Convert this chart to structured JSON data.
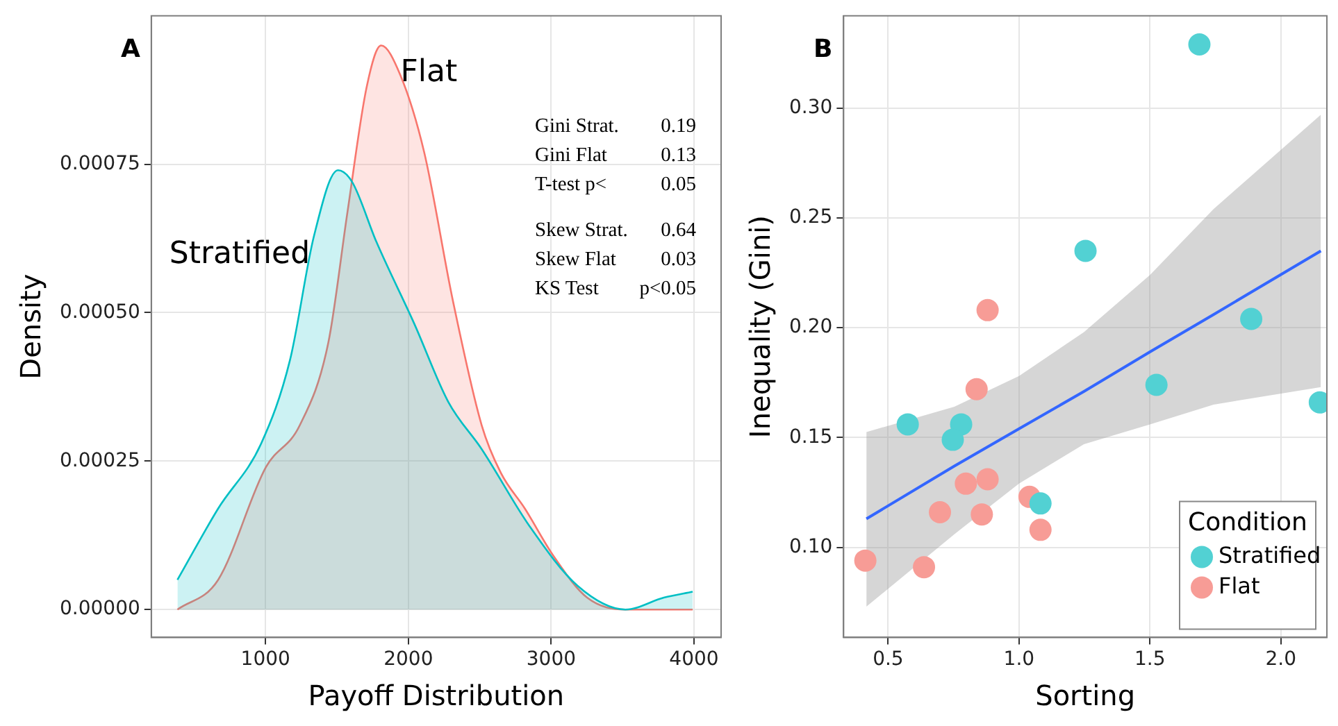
{
  "chart_data": [
    {
      "type": "area",
      "title": "A",
      "xlabel": "Payoff Distribution",
      "ylabel": "Density",
      "series": [
        {
          "name": "Stratified",
          "color": "#00bfc4",
          "x": [
            383,
            668,
            970,
            1171,
            1340,
            1507,
            1607,
            1775,
            2044,
            2279,
            2514,
            2850,
            3185,
            3520,
            3789,
            3991
          ],
          "values": [
            5e-05,
            0.00017,
            0.00028,
            0.00042,
            0.00063,
            0.00074,
            0.00072,
            0.00062,
            0.00048,
            0.00035,
            0.00027,
            0.00014,
            4e-05,
            0,
            2e-05,
            3e-05
          ]
        },
        {
          "name": "Flat",
          "color": "#f8766d",
          "x": [
            383,
            668,
            1003,
            1239,
            1440,
            1574,
            1708,
            1809,
            1944,
            2111,
            2312,
            2514,
            2648,
            2816,
            3017,
            3252,
            3520,
            3991
          ],
          "values": [
            0,
            5e-05,
            0.00024,
            0.00031,
            0.00045,
            0.00067,
            0.00088,
            0.00095,
            0.0009,
            0.00077,
            0.00052,
            0.00031,
            0.00023,
            0.00017,
            9e-05,
            2e-05,
            0,
            0
          ]
        }
      ],
      "xlim": [
        200,
        4190
      ],
      "xticks": [
        1000,
        2000,
        3000,
        4000
      ],
      "ylim": [
        -4.7e-05,
        0.001
      ],
      "yticks": [
        {
          "value": 0,
          "label": "0.00000"
        },
        {
          "value": 0.00025,
          "label": "0.00025"
        },
        {
          "value": 0.0005,
          "label": "0.00050"
        },
        {
          "value": 0.00075,
          "label": "0.00075"
        }
      ],
      "annotations": [
        "Gini Strat. 0.19\nGini Flat 0.13\nT-test p< 0.05",
        "Skew Strat. 0.64\nSkew Flat 0.03\nKS Test p<0.05"
      ],
      "grid": true,
      "legend": false
    },
    {
      "type": "scatter",
      "title": "B",
      "xlabel": "Sorting",
      "ylabel": "Inequality (Gini)",
      "legend_title": "Condition",
      "series": [
        {
          "name": "Stratified",
          "color": "#52d1d3",
          "marker": "circle",
          "x": [
            1.689,
            1.254,
            1.887,
            1.525,
            2.149,
            0.575,
            0.779,
            0.747,
            1.082
          ],
          "values": [
            0.329,
            0.235,
            0.204,
            0.174,
            0.166,
            0.156,
            0.156,
            0.149,
            0.12
          ]
        },
        {
          "name": "Flat",
          "color": "#f79c96",
          "marker": "circle",
          "x": [
            0.88,
            0.838,
            0.88,
            0.797,
            1.04,
            0.698,
            0.858,
            1.082,
            0.413,
            0.637
          ],
          "values": [
            0.208,
            0.172,
            0.131,
            0.129,
            0.123,
            0.116,
            0.115,
            0.108,
            0.094,
            0.091
          ]
        },
        {
          "type": "line",
          "color": "#3366ff",
          "x": [
            0.417,
            0.753,
            1.0,
            1.248,
            1.5,
            1.743,
            2.153
          ],
          "values": [
            0.113,
            0.137,
            0.154,
            0.171,
            0.189,
            0.206,
            0.235
          ],
          "lower": [
            0.073,
            0.106,
            0.129,
            0.147,
            0.156,
            0.165,
            0.173
          ],
          "upper": [
            0.1525,
            0.164,
            0.178,
            0.198,
            0.224,
            0.254,
            0.297
          ]
        }
      ],
      "xlim": [
        0.33,
        2.176
      ],
      "xticks": [
        {
          "value": 0.5,
          "label": "0.5"
        },
        {
          "value": 1,
          "label": "1.0"
        },
        {
          "value": 1.5,
          "label": "1.5"
        },
        {
          "value": 2,
          "label": "2.0"
        }
      ],
      "ylim": [
        0.059,
        0.342
      ],
      "yticks": [
        {
          "value": 0.1,
          "label": "0.10"
        },
        {
          "value": 0.15,
          "label": "0.15"
        },
        {
          "value": 0.2,
          "label": "0.20"
        },
        {
          "value": 0.25,
          "label": "0.25"
        },
        {
          "value": 0.3,
          "label": "0.30"
        }
      ],
      "grid": true,
      "legend": "bottom right"
    }
  ]
}
